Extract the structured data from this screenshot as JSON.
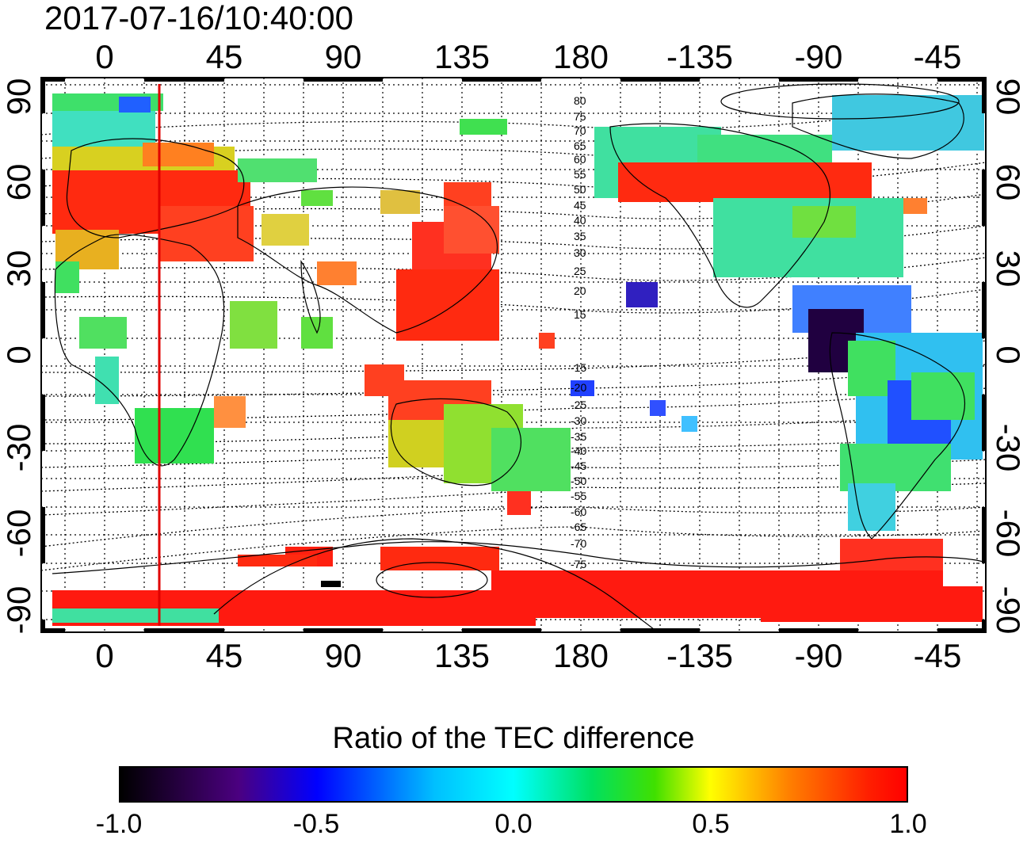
{
  "timestamp": "2017-07-16/10:40:00",
  "top_lon_labels": [
    "0",
    "45",
    "90",
    "135",
    "180",
    "-135",
    "-90",
    "-45"
  ],
  "bottom_lon_labels": [
    "0",
    "45",
    "90",
    "135",
    "180",
    "-135",
    "-90",
    "-45"
  ],
  "left_lat_labels": [
    "90",
    "60",
    "30",
    "0",
    "-30",
    "-60",
    "-90"
  ],
  "right_lat_labels": [
    "90",
    "60",
    "30",
    "0",
    "-30",
    "-60",
    "-90"
  ],
  "magnetic_lat_labels": [
    "80",
    "75",
    "70",
    "65",
    "60",
    "55",
    "50",
    "45",
    "40",
    "35",
    "30",
    "25",
    "20",
    "15",
    "-15",
    "-20",
    "-25",
    "-30",
    "-35",
    "-40",
    "-45",
    "-50",
    "-55",
    "-60",
    "-65",
    "-70",
    "-75"
  ],
  "colorbar": {
    "title": "Ratio of the TEC difference",
    "ticks": [
      "-1.0",
      "-0.5",
      "0.0",
      "0.5",
      "1.0"
    ]
  },
  "terminator_color": "#e00000"
}
